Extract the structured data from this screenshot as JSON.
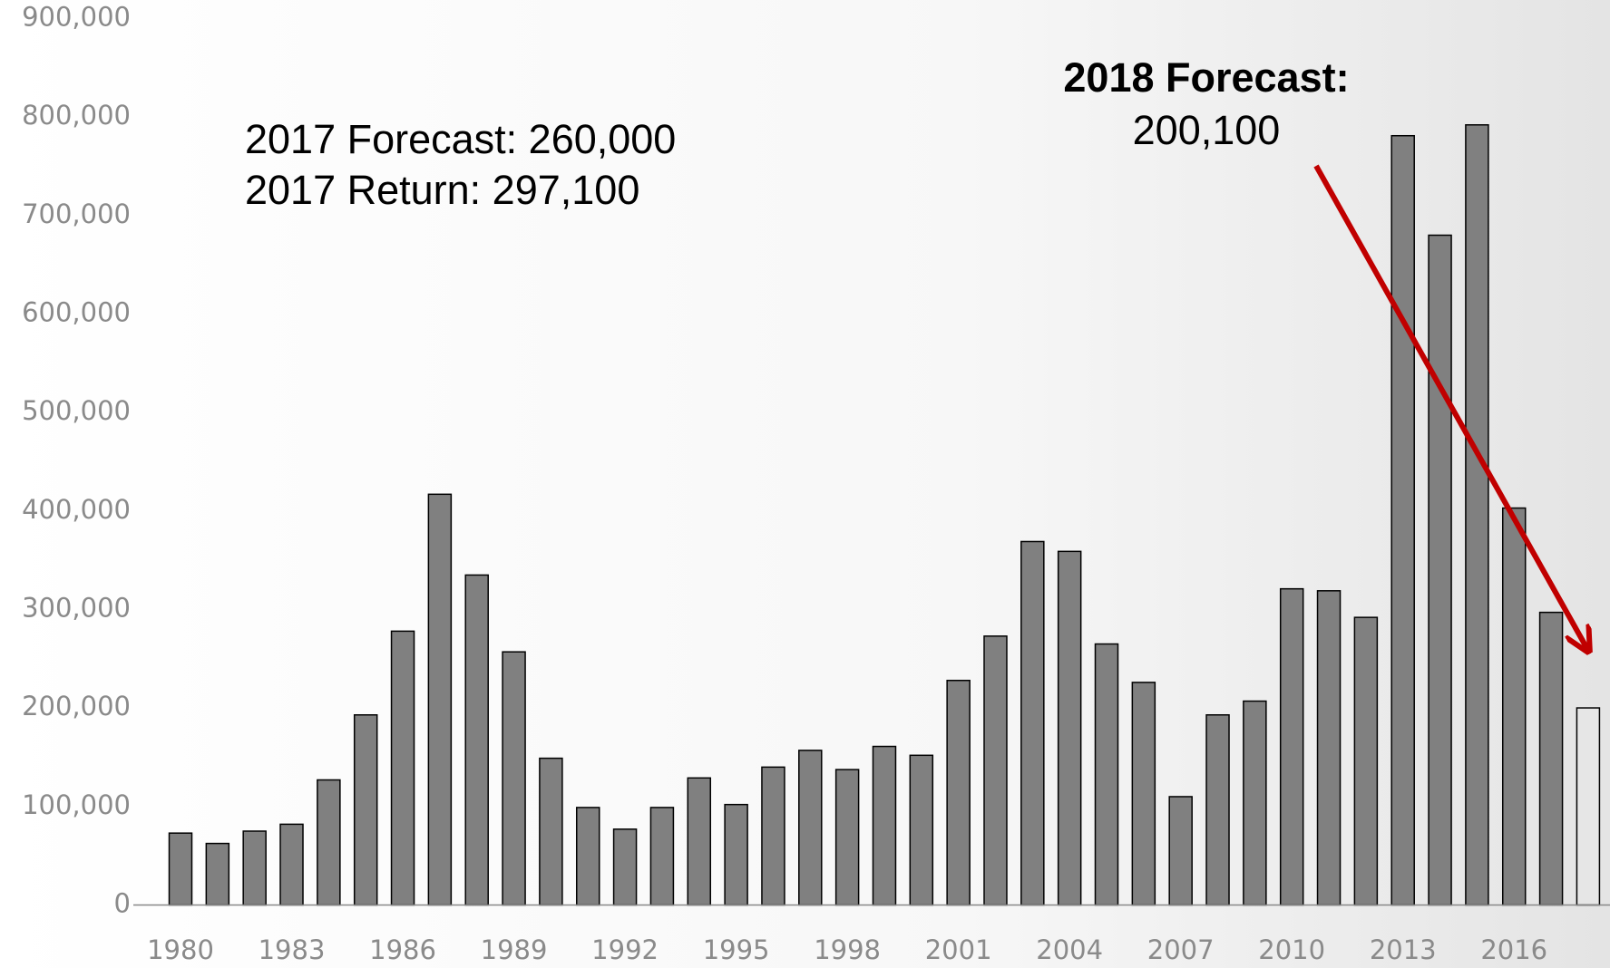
{
  "chart_data": {
    "type": "bar",
    "categories": [
      "1980",
      null,
      null,
      "1983",
      null,
      null,
      "1986",
      null,
      null,
      "1989",
      null,
      null,
      "1992",
      null,
      null,
      "1995",
      null,
      null,
      "1998",
      null,
      null,
      "2001",
      null,
      null,
      "2004",
      null,
      null,
      "2007",
      null,
      null,
      "2010",
      null,
      null,
      "2013",
      null,
      null,
      "2016",
      null,
      null
    ],
    "values": [
      73000,
      62500,
      75000,
      82000,
      127000,
      193000,
      278000,
      417000,
      335000,
      257000,
      149000,
      99000,
      77000,
      99000,
      129000,
      102000,
      140000,
      157000,
      137500,
      161000,
      152000,
      228000,
      273000,
      369000,
      359000,
      265000,
      226000,
      110000,
      193000,
      207000,
      321000,
      319000,
      292000,
      781000,
      680000,
      792000,
      403000,
      297100,
      200100
    ],
    "colors": [
      "#808080",
      "#808080",
      "#808080",
      "#808080",
      "#808080",
      "#808080",
      "#808080",
      "#808080",
      "#808080",
      "#808080",
      "#808080",
      "#808080",
      "#808080",
      "#808080",
      "#808080",
      "#808080",
      "#808080",
      "#808080",
      "#808080",
      "#808080",
      "#808080",
      "#808080",
      "#808080",
      "#808080",
      "#808080",
      "#808080",
      "#808080",
      "#808080",
      "#808080",
      "#808080",
      "#808080",
      "#808080",
      "#808080",
      "#808080",
      "#808080",
      "#808080",
      "#808080",
      "#808080",
      "#e6e6e6"
    ],
    "ylim": [
      0,
      900000
    ],
    "yticks": [
      0,
      {
        "value": 100000,
        "label": "100,000"
      },
      {
        "value": 200000,
        "label": "200,000"
      },
      {
        "value": 300000,
        "label": "300,000"
      },
      {
        "value": 400000,
        "label": "400,000"
      },
      {
        "value": 500000,
        "label": "500,000"
      },
      {
        "value": 600000,
        "label": "600,000"
      },
      {
        "value": 700000,
        "label": "700,000"
      },
      {
        "value": 800000,
        "label": "800,000"
      },
      {
        "value": 900000,
        "label": "900,000"
      }
    ],
    "grid": false,
    "annotations": [
      "2017 Forecast:  260,000",
      "2017 Return:  297,100",
      "2018 Forecast:",
      "200,100"
    ]
  }
}
